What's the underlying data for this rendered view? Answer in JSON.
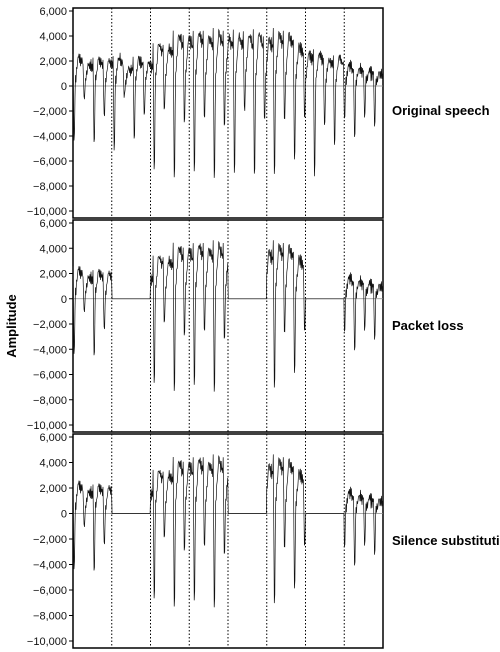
{
  "chart_data": {
    "type": "line",
    "ylabel": "Amplitude",
    "ylim": [
      -10000,
      6000
    ],
    "yticks": [
      6000,
      4000,
      2000,
      0,
      -2000,
      -4000,
      -6000,
      -8000,
      -10000
    ],
    "ytick_labels": [
      "6,000",
      "4,000",
      "2,000",
      "0",
      "−2,000",
      "−4,000",
      "−6,000",
      "−8,000",
      "−10,000"
    ],
    "packet_boundaries": [
      1,
      2,
      3,
      4,
      5,
      6,
      7,
      8
    ],
    "packet_count": 8,
    "grid": "dashed vertical lines at packet boundaries",
    "panels": [
      {
        "title": "Original speech",
        "lost_packets": [],
        "lost_fill": "none"
      },
      {
        "title": "Packet loss",
        "lost_packets": [
          1,
          4,
          6
        ],
        "lost_fill": "zero"
      },
      {
        "title": "Silence substitution",
        "lost_packets": [
          1,
          4,
          6
        ],
        "lost_fill": "zero"
      }
    ]
  }
}
